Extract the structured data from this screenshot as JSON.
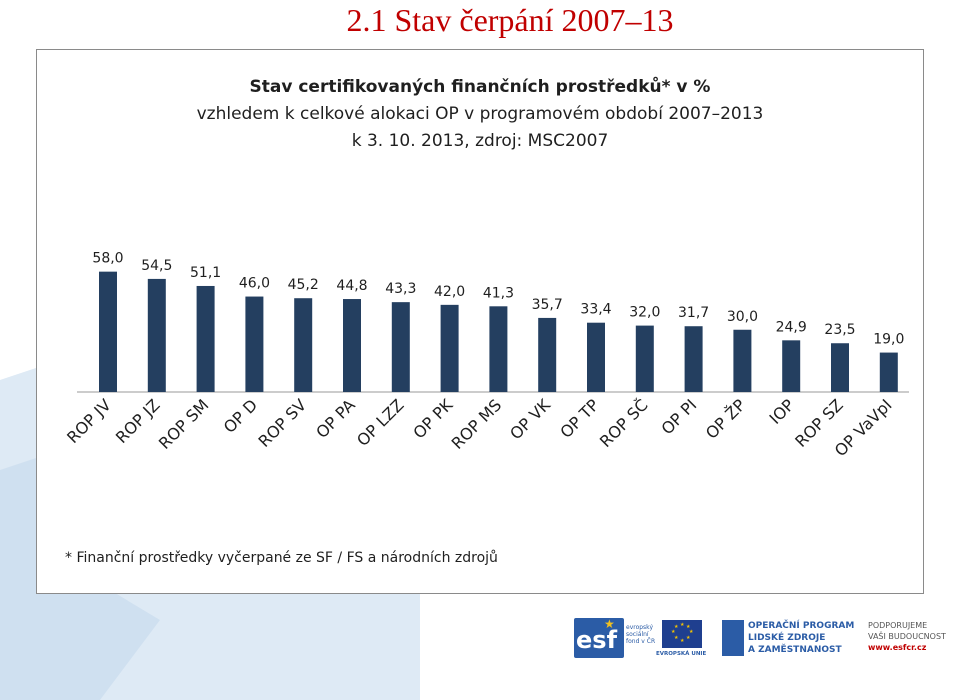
{
  "slide": {
    "title": "2.1 Stav čerpání 2007–13"
  },
  "colors": {
    "title": "#c00000",
    "bar": "#243f60",
    "background_shape": "#deeaf5"
  },
  "chart_data": {
    "type": "bar",
    "title": "Stav certifikovaných finančních prostředků* v %",
    "subtitle": [
      "vzhledem k celkové alokaci OP v programovém období 2007–2013",
      "k 3. 10. 2013, zdroj: MSC2007"
    ],
    "xlabel": "",
    "ylabel": "",
    "ylim": [
      0,
      80
    ],
    "grid": false,
    "categories": [
      "ROP JV",
      "ROP JZ",
      "ROP SM",
      "OP D",
      "ROP SV",
      "OP PA",
      "OP LZZ",
      "OP PK",
      "ROP MS",
      "OP VK",
      "OP TP",
      "ROP SČ",
      "OP PI",
      "OP ŽP",
      "IOP",
      "ROP SZ",
      "OP VaVpI"
    ],
    "values": [
      58.0,
      54.5,
      51.1,
      46.0,
      45.2,
      44.8,
      43.3,
      42.0,
      41.3,
      35.7,
      33.4,
      32.0,
      31.7,
      30.0,
      24.9,
      23.5,
      19.0
    ],
    "value_labels": [
      "58,0",
      "54,5",
      "51,1",
      "46,0",
      "45,2",
      "44,8",
      "43,3",
      "42,0",
      "41,3",
      "35,7",
      "33,4",
      "32,0",
      "31,7",
      "30,0",
      "24,9",
      "23,5",
      "19,0"
    ],
    "footnote": "* Finanční prostředky vyčerpané ze SF / FS a národních zdrojů"
  },
  "logos": {
    "esf_mark": "esf",
    "esf_lines": [
      "evropský",
      "sociální",
      "fond v ČR"
    ],
    "eu_caption": "EVROPSKÁ UNIE",
    "op_lines": [
      "OPERAČNÍ PROGRAM",
      "LIDSKÉ ZDROJE",
      "A ZAMĚSTNANOST"
    ],
    "support_lines": [
      "PODPORUJEME",
      "VAŠI BUDOUCNOST"
    ],
    "support_url": "www.esfcr.cz"
  }
}
